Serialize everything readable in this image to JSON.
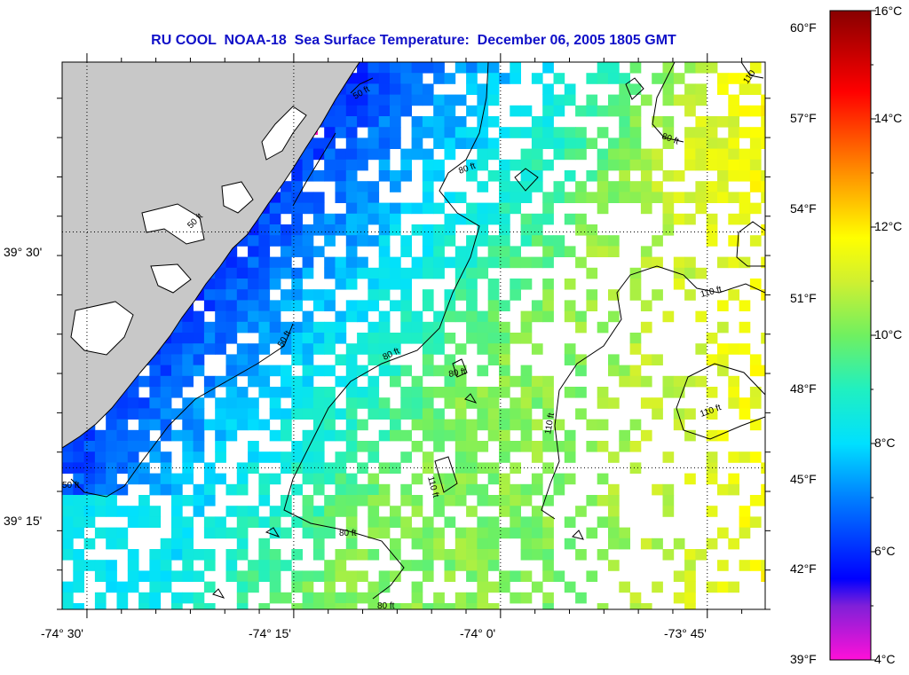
{
  "title": "RU COOL  NOAA-18  Sea Surface Temperature:  December 06, 2005 1805 GMT",
  "axes": {
    "x_ticks": [
      {
        "label": "-74° 30'",
        "lon": -74.5
      },
      {
        "label": "-74° 15'",
        "lon": -74.25
      },
      {
        "label": "-74° 0'",
        "lon": -74.0
      },
      {
        "label": "-73° 45'",
        "lon": -73.75
      }
    ],
    "y_ticks": [
      {
        "label": "39° 30'",
        "lat": 39.5
      },
      {
        "label": "39° 15'",
        "lat": 39.25
      }
    ],
    "lon_range": [
      -74.53,
      -73.68
    ],
    "lat_range": [
      39.1,
      39.68
    ],
    "grid": "dotted"
  },
  "colorbar": {
    "range_c": [
      4,
      16
    ],
    "celsius_labels": [
      "16°C",
      "14°C",
      "12°C",
      "10°C",
      "8°C",
      "6°C",
      "4°C"
    ],
    "fahrenheit_labels": [
      "60°F",
      "57°F",
      "54°F",
      "51°F",
      "48°F",
      "45°F",
      "42°F",
      "39°F"
    ],
    "stops": [
      {
        "c": 4,
        "color": "#ff10d8"
      },
      {
        "c": 5,
        "color": "#8020d8"
      },
      {
        "c": 5.5,
        "color": "#0000ff"
      },
      {
        "c": 7,
        "color": "#0080ff"
      },
      {
        "c": 8,
        "color": "#00e0ff"
      },
      {
        "c": 9,
        "color": "#20f0c0"
      },
      {
        "c": 10,
        "color": "#70f060"
      },
      {
        "c": 11,
        "color": "#d0f030"
      },
      {
        "c": 11.8,
        "color": "#ffff00"
      },
      {
        "c": 13,
        "color": "#ff9000"
      },
      {
        "c": 14.5,
        "color": "#ff0000"
      },
      {
        "c": 16,
        "color": "#880000"
      }
    ]
  },
  "contour_labels": [
    "50 ft",
    "80 ft",
    "80 ft",
    "80 ft",
    "110 ft",
    "110 ft",
    "110 ft",
    "110",
    "50 ft",
    "80 ft",
    "50 ft",
    "80 ft",
    "110 ft",
    "80 ft",
    "50 ft"
  ],
  "colors": {
    "land": "#c8c8c8",
    "coast": "#000000",
    "frame": "#000000",
    "title": "#1010c8"
  }
}
